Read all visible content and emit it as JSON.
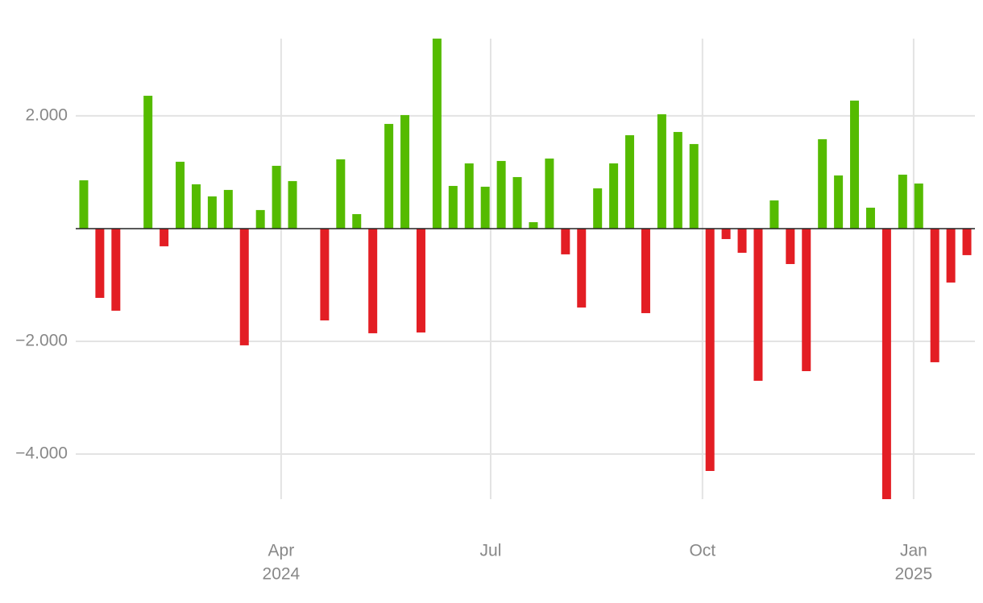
{
  "chart_data": {
    "type": "bar",
    "categories": [
      null,
      null,
      null,
      null,
      null,
      null,
      null,
      null,
      null,
      null,
      null,
      null,
      null,
      null,
      null,
      null,
      null,
      null,
      null,
      null,
      null,
      null,
      null,
      null,
      null,
      null,
      null,
      null,
      null,
      null,
      null,
      null,
      null,
      null,
      null,
      null,
      null,
      null,
      null,
      null,
      null,
      null,
      null,
      null,
      null,
      null,
      null,
      null,
      null,
      null,
      null,
      null,
      null,
      null,
      null,
      null
    ],
    "values": [
      857,
      -1229,
      -1457,
      null,
      2357,
      -314,
      1186,
      786,
      571,
      686,
      -2071,
      329,
      1114,
      843,
      null,
      -1629,
      1229,
      257,
      -1857,
      1857,
      2014,
      -1843,
      3371,
      757,
      1157,
      743,
      1200,
      914,
      114,
      1243,
      -457,
      -1400,
      714,
      1157,
      1657,
      -1500,
      2029,
      1714,
      1500,
      -4300,
      -186,
      -429,
      -2700,
      500,
      -629,
      -2529,
      1586,
      943,
      2271,
      371,
      -4800,
      957,
      800,
      -2371,
      -957,
      -471
    ],
    "positive_color": "#55bb00",
    "negative_color": "#e31e24",
    "ylim": [
      -4800,
      3370
    ],
    "yticks": [
      {
        "value": -4000,
        "label": "−4.000"
      },
      {
        "value": -2000,
        "label": "−2.000"
      },
      0,
      {
        "value": 2000,
        "label": "2.000"
      }
    ],
    "xlim": [
      -0.5,
      55.5
    ],
    "xticks": [
      {
        "value": 12.29,
        "label": "Apr"
      },
      {
        "value": 25.34,
        "label": "Jul"
      },
      {
        "value": 38.53,
        "label": "Oct"
      },
      {
        "value": 51.68,
        "label": "Jan"
      }
    ],
    "xtick_years": [
      {
        "value": 12.29,
        "label": "2024"
      },
      {
        "value": 51.68,
        "label": "2025"
      }
    ],
    "grid": true,
    "zero_line": true
  }
}
